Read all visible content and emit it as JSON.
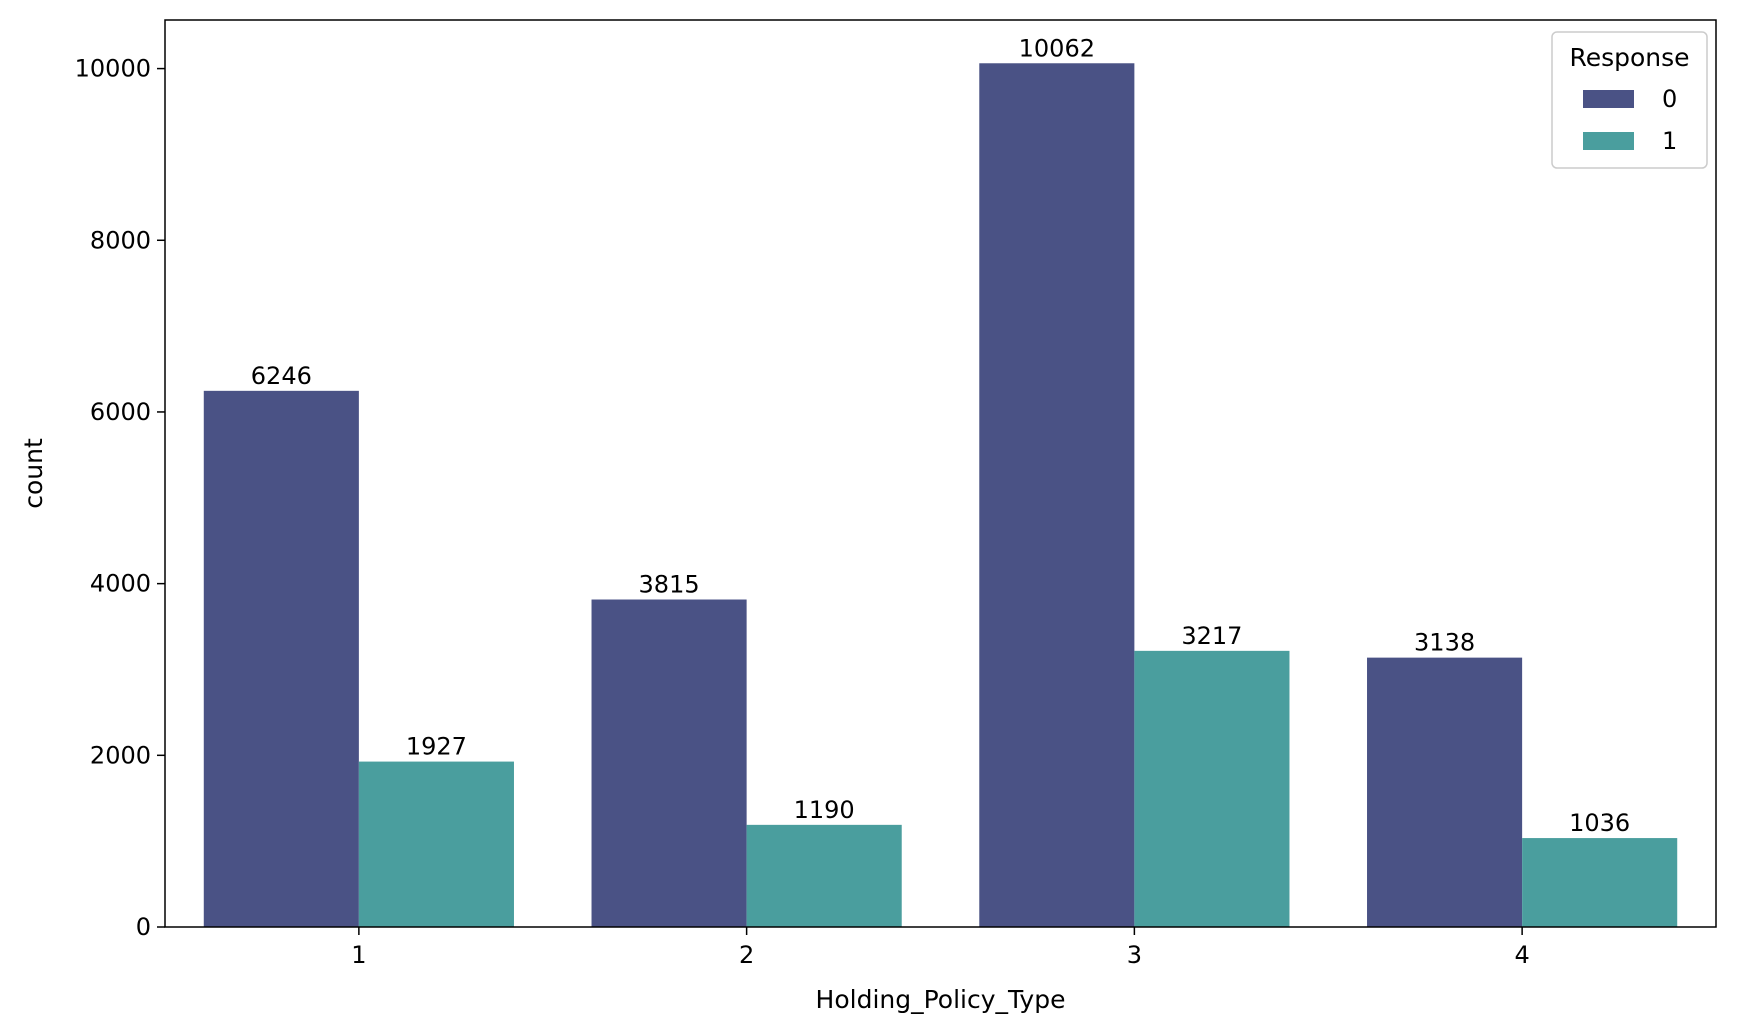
{
  "chart_data": {
    "type": "bar",
    "title": "",
    "xlabel": "Holding_Policy_Type",
    "ylabel": "count",
    "categories": [
      "1",
      "2",
      "3",
      "4"
    ],
    "series": [
      {
        "name": "0",
        "color": "#4a5285",
        "values": [
          6246,
          3815,
          10062,
          3138
        ]
      },
      {
        "name": "1",
        "color": "#4a9e9e",
        "values": [
          1927,
          1190,
          3217,
          1036
        ]
      }
    ],
    "ylim": [
      0,
      10566
    ],
    "yticks": [
      0,
      2000,
      4000,
      6000,
      8000,
      10000
    ],
    "legend": {
      "title": "Response",
      "placement": "top-right"
    },
    "grid": false
  }
}
